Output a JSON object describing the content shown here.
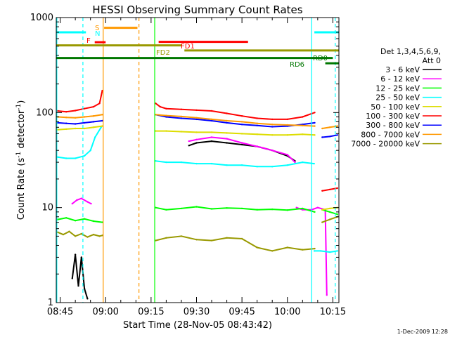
{
  "chart_data": {
    "type": "line",
    "title": "HESSI Observing Summary Count Rates",
    "xlabel": "Start Time (28-Nov-05 08:43:42)",
    "ylabel": "Count Rate (s",
    "ylabel_sup1": "-1",
    "ylabel_mid": " detector",
    "ylabel_sup2": "-1",
    "ylabel_end": ")",
    "yscale": "log",
    "ylim": [
      1,
      1000
    ],
    "xlim": [
      523.7,
      617
    ],
    "x_unit": "minutes since 00:00 UT",
    "x_ticks": [
      {
        "value": 525,
        "label": "08:45"
      },
      {
        "value": 540,
        "label": "09:00"
      },
      {
        "value": 555,
        "label": "09:15"
      },
      {
        "value": 570,
        "label": "09:30"
      },
      {
        "value": 585,
        "label": "09:45"
      },
      {
        "value": 600,
        "label": "10:00"
      },
      {
        "value": 615,
        "label": "10:15"
      }
    ],
    "y_ticks": [
      {
        "value": 1,
        "label": "1"
      },
      {
        "value": 10,
        "label": "10"
      },
      {
        "value": 100,
        "label": "100"
      },
      {
        "value": 1000,
        "label": "1000"
      }
    ],
    "legend": {
      "placement": "right",
      "header1": "Det 1,3,4,5,6,9,",
      "header2": "Att 0",
      "entries": [
        {
          "label": "3 - 6 keV",
          "color": "#000000"
        },
        {
          "label": "6 - 12 keV",
          "color": "#ff00ff"
        },
        {
          "label": "12 - 25 keV",
          "color": "#00ff00"
        },
        {
          "label": "25 - 50 keV",
          "color": "#00ffff"
        },
        {
          "label": "50 - 100 keV",
          "color": "#dddd00"
        },
        {
          "label": "100 - 300 keV",
          "color": "#ff0000"
        },
        {
          "label": "300 - 800 keV",
          "color": "#0000ff"
        },
        {
          "label": "800 - 7000 keV",
          "color": "#ff9900"
        },
        {
          "label": "7000 - 20000 keV",
          "color": "#999900"
        }
      ]
    },
    "flags": [
      {
        "label": "",
        "color": "#00ffff",
        "y": 700,
        "x": [
          [
            523.7,
            533.5
          ],
          [
            608.9,
            617
          ]
        ]
      },
      {
        "label": "S",
        "color": "#ff9900",
        "y": 780,
        "x": [
          [
            539.5,
            550.5
          ]
        ]
      },
      {
        "label": "N",
        "color": "#00ffff",
        "y": 680,
        "x": []
      },
      {
        "label": "F",
        "color": "#ff0000",
        "y": 550,
        "x": [
          [
            536.4,
            540
          ]
        ]
      },
      {
        "label": "FD1",
        "color": "#ff0000",
        "y": 555,
        "x": [
          [
            557.5,
            587
          ]
        ]
      },
      {
        "label": "",
        "color": "#999900",
        "y": 510,
        "x": [
          [
            523.7,
            565
          ]
        ]
      },
      {
        "label": "FD2",
        "color": "#999900",
        "y": 450,
        "x": [
          [
            566,
            617
          ]
        ]
      },
      {
        "label": "RD0",
        "color": "#007700",
        "y": 375,
        "x": [
          [
            523.7,
            615
          ]
        ]
      },
      {
        "label": "RD6",
        "color": "#007700",
        "y": 330,
        "x": [
          [
            612.5,
            617
          ]
        ]
      }
    ],
    "vlines": [
      {
        "x": 523.9,
        "color": "#00ffff",
        "style": "solid"
      },
      {
        "x": 532.5,
        "color": "#00ffff",
        "style": "dashed"
      },
      {
        "x": 539.2,
        "color": "#ff9900",
        "style": "solid"
      },
      {
        "x": 551.0,
        "color": "#ff9900",
        "style": "dashed"
      },
      {
        "x": 556.2,
        "color": "#00ff00",
        "style": "solid"
      },
      {
        "x": 608.0,
        "color": "#00ffff",
        "style": "solid"
      },
      {
        "x": 615.8,
        "color": "#00ffff",
        "style": "dashed"
      }
    ],
    "series": [
      {
        "name": "3 - 6 keV",
        "color": "#000000",
        "segments": [
          {
            "x": [
              529.0,
              530.0,
              531.0,
              532.0,
              533.0,
              534.0
            ],
            "y": [
              1.8,
              3.2,
              1.5,
              3.0,
              1.4,
              1.1
            ]
          },
          {
            "x": [
              567.5,
              570,
              575,
              580,
              585,
              590,
              595,
              600,
              602.5
            ],
            "y": [
              45,
              48,
              50,
              48,
              46,
              44,
              40,
              35,
              31
            ]
          }
        ]
      },
      {
        "name": "6 - 12 keV",
        "color": "#ff00ff",
        "segments": [
          {
            "x": [
              529.0,
              530.5,
              532,
              534,
              535.2
            ],
            "y": [
              11.0,
              12.0,
              12.5,
              11.5,
              11.0
            ]
          },
          {
            "x": [
              567.5,
              570,
              575,
              580,
              585,
              590,
              595,
              600,
              602.5
            ],
            "y": [
              50,
              52,
              55,
              53,
              48,
              44,
              40,
              36,
              30
            ]
          },
          {
            "x": [
              603,
              605,
              608,
              610,
              612.5,
              613
            ],
            "y": [
              10,
              9.5,
              9.5,
              10.0,
              9.5,
              1.2
            ]
          }
        ]
      },
      {
        "name": "12 - 25 keV",
        "color": "#00ff00",
        "segments": [
          {
            "x": [
              524.2,
              527,
              530,
              533,
              536,
              538.9
            ],
            "y": [
              7.5,
              7.8,
              7.3,
              7.6,
              7.2,
              7.0
            ]
          },
          {
            "x": [
              556.5,
              560,
              565,
              570,
              575,
              580,
              585,
              590,
              595,
              600,
              605,
              609
            ],
            "y": [
              10,
              9.5,
              9.8,
              10.2,
              9.7,
              9.9,
              9.8,
              9.5,
              9.6,
              9.4,
              9.8,
              9.0
            ]
          },
          {
            "x": [
              611.5,
              614,
              616.5
            ],
            "y": [
              9.5,
              9.0,
              8.5
            ]
          }
        ]
      },
      {
        "name": "25 - 50 keV",
        "color": "#00ffff",
        "segments": [
          {
            "x": [
              524.2,
              527,
              530,
              533,
              535,
              536.5,
              538.5
            ],
            "y": [
              34,
              33,
              33,
              35,
              40,
              55,
              70
            ]
          },
          {
            "x": [
              556.5,
              560,
              565,
              570,
              575,
              580,
              585,
              590,
              595,
              600,
              605,
              608.8
            ],
            "y": [
              31,
              30,
              30,
              29,
              29,
              28,
              28,
              27,
              27,
              28,
              30,
              29
            ]
          },
          {
            "x": [
              608.9,
              611,
              614,
              616.5
            ],
            "y": [
              3.5,
              3.5,
              3.4,
              3.5
            ]
          }
        ]
      },
      {
        "name": "50 - 100 keV",
        "color": "#dddd00",
        "segments": [
          {
            "x": [
              524.2,
              527,
              530,
              533,
              536,
              538.9
            ],
            "y": [
              66,
              67,
              68,
              68,
              70,
              72
            ]
          },
          {
            "x": [
              556.5,
              560,
              565,
              570,
              575,
              580,
              585,
              590,
              595,
              600,
              605,
              609
            ],
            "y": [
              64,
              64,
              63,
              62,
              62,
              61,
              60,
              59,
              58,
              58,
              59,
              58
            ]
          },
          {
            "x": [
              611.5,
              614,
              616.5
            ],
            "y": [
              9.5,
              9.8,
              10.0
            ]
          }
        ]
      },
      {
        "name": "100 - 300 keV",
        "color": "#ff0000",
        "segments": [
          {
            "x": [
              524.2,
              527,
              530,
              533,
              536,
              538,
              538.9
            ],
            "y": [
              104,
              102,
              105,
              110,
              115,
              125,
              170
            ]
          },
          {
            "x": [
              556.5,
              558,
              560,
              565,
              570,
              575,
              580,
              585,
              590,
              595,
              600,
              605,
              609
            ],
            "y": [
              125,
              115,
              110,
              108,
              106,
              104,
              98,
              92,
              87,
              85,
              85,
              90,
              100
            ]
          },
          {
            "x": [
              611.5,
              614,
              616.5
            ],
            "y": [
              15,
              15.5,
              16
            ]
          }
        ]
      },
      {
        "name": "300 - 800 keV",
        "color": "#0000ff",
        "segments": [
          {
            "x": [
              524.2,
              527,
              530,
              533,
              536,
              538.9
            ],
            "y": [
              78,
              77,
              76,
              78,
              80,
              82
            ]
          },
          {
            "x": [
              556.5,
              560,
              565,
              570,
              575,
              580,
              585,
              590,
              595,
              600,
              605,
              609
            ],
            "y": [
              95,
              90,
              87,
              85,
              82,
              78,
              75,
              73,
              71,
              72,
              75,
              78
            ]
          },
          {
            "x": [
              611.5,
              614,
              616.5
            ],
            "y": [
              55,
              56,
              58
            ]
          }
        ]
      },
      {
        "name": "800 - 7000 keV",
        "color": "#ff9900",
        "segments": [
          {
            "x": [
              524.2,
              527,
              530,
              533,
              536,
              538.9
            ],
            "y": [
              90,
              89,
              88,
              90,
              92,
              95
            ]
          },
          {
            "x": [
              556.5,
              560,
              565,
              570,
              575,
              580,
              585,
              590,
              595,
              600,
              605,
              609
            ],
            "y": [
              95,
              93,
              91,
              88,
              85,
              82,
              80,
              77,
              75,
              74,
              73,
              72
            ]
          },
          {
            "x": [
              611.5,
              614,
              616.5
            ],
            "y": [
              68,
              70,
              72
            ]
          }
        ]
      },
      {
        "name": "7000 - 20000 keV",
        "color": "#999900",
        "segments": [
          {
            "x": [
              524.2,
              526,
              528,
              530,
              532,
              534,
              536,
              538,
              539
            ],
            "y": [
              5.5,
              5.2,
              5.6,
              5.0,
              5.3,
              4.9,
              5.2,
              5.0,
              5.1
            ]
          },
          {
            "x": [
              556.5,
              560,
              565,
              570,
              575,
              580,
              585,
              590,
              595,
              600,
              605,
              609
            ],
            "y": [
              4.5,
              4.8,
              5.0,
              4.6,
              4.5,
              4.8,
              4.7,
              3.8,
              3.5,
              3.8,
              3.6,
              3.7
            ]
          },
          {
            "x": [
              611.5,
              614,
              616.5
            ],
            "y": [
              7.0,
              7.5,
              8.0
            ]
          }
        ]
      }
    ]
  },
  "footer": {
    "timestamp": "1-Dec-2009 12:28"
  }
}
